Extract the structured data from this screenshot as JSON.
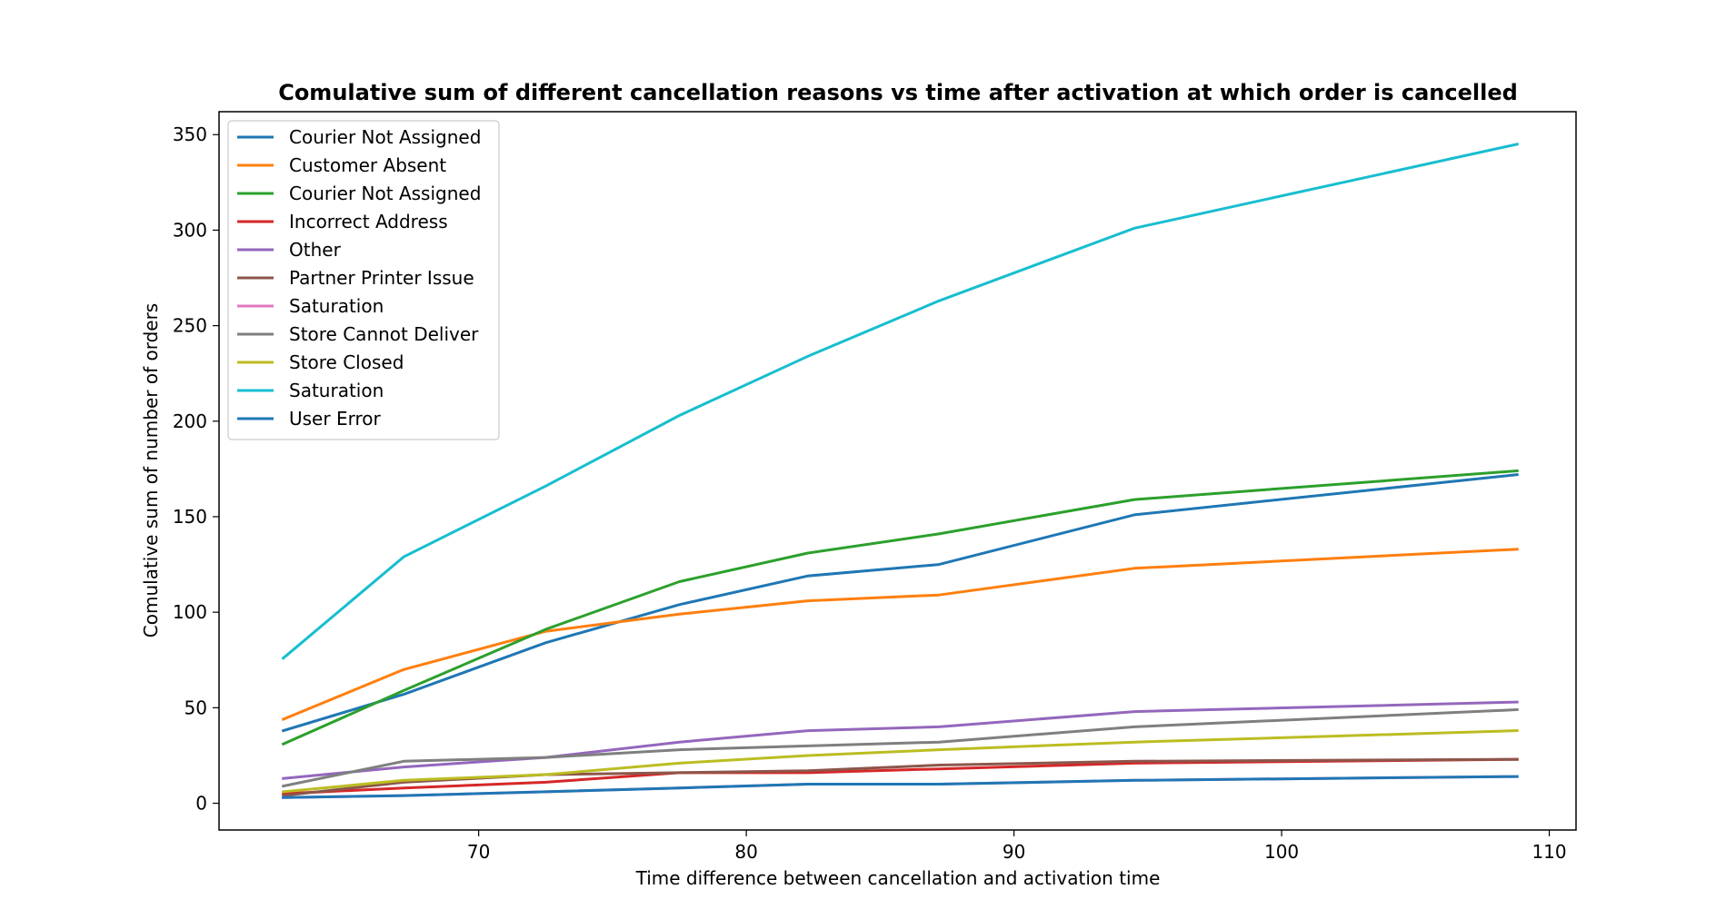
{
  "chart_data": {
    "type": "line",
    "title": "Comulative sum of different cancellation reasons vs time after activation at which order is cancelled",
    "xlabel": "Time difference between cancellation and activation time",
    "ylabel": "Comulative sum of number of orders",
    "xlim": [
      60.3,
      111.0
    ],
    "ylim": [
      -14,
      362
    ],
    "xticks": [
      70,
      80,
      90,
      100,
      110
    ],
    "yticks": [
      0,
      50,
      100,
      150,
      200,
      250,
      300,
      350
    ],
    "grid": false,
    "legend_position": "top-left",
    "x": [
      62.7,
      67.2,
      72.5,
      77.5,
      82.3,
      87.2,
      94.5,
      108.8
    ],
    "series": [
      {
        "name": "Courier Not Assigned",
        "color": "#1f77b4",
        "values": [
          38,
          57,
          84,
          104,
          119,
          125,
          151,
          172
        ]
      },
      {
        "name": "Customer Absent",
        "color": "#ff7f0e",
        "values": [
          44,
          70,
          90,
          99,
          106,
          109,
          123,
          133
        ]
      },
      {
        "name": "Courier Not Assigned",
        "color": "#2ca02c",
        "values": [
          31,
          59,
          91,
          116,
          131,
          141,
          159,
          174
        ]
      },
      {
        "name": "Incorrect Address",
        "color": "#d62728",
        "values": [
          5,
          8,
          11,
          16,
          16,
          18,
          21,
          23
        ]
      },
      {
        "name": "Other",
        "color": "#9467bd",
        "values": [
          13,
          19,
          24,
          32,
          38,
          40,
          48,
          53
        ]
      },
      {
        "name": "Partner Printer Issue",
        "color": "#8c564b",
        "values": [
          4,
          11,
          15,
          16,
          17,
          20,
          22,
          23
        ]
      },
      {
        "name": "Saturation",
        "color": "#e377c2",
        "values": [
          3,
          4,
          6,
          8,
          10,
          10,
          12,
          14
        ]
      },
      {
        "name": "Store Cannot Deliver",
        "color": "#7f7f7f",
        "values": [
          9,
          22,
          24,
          28,
          30,
          32,
          40,
          49
        ]
      },
      {
        "name": "Store Closed",
        "color": "#bcbd22",
        "values": [
          6,
          12,
          15,
          21,
          25,
          28,
          32,
          38
        ]
      },
      {
        "name": "Saturation",
        "color": "#17becf",
        "values": [
          76,
          129,
          166,
          203,
          234,
          263,
          301,
          345
        ]
      },
      {
        "name": "User Error",
        "color": "#1f77b4",
        "values": [
          3,
          4,
          6,
          8,
          10,
          10,
          12,
          14
        ]
      }
    ]
  }
}
